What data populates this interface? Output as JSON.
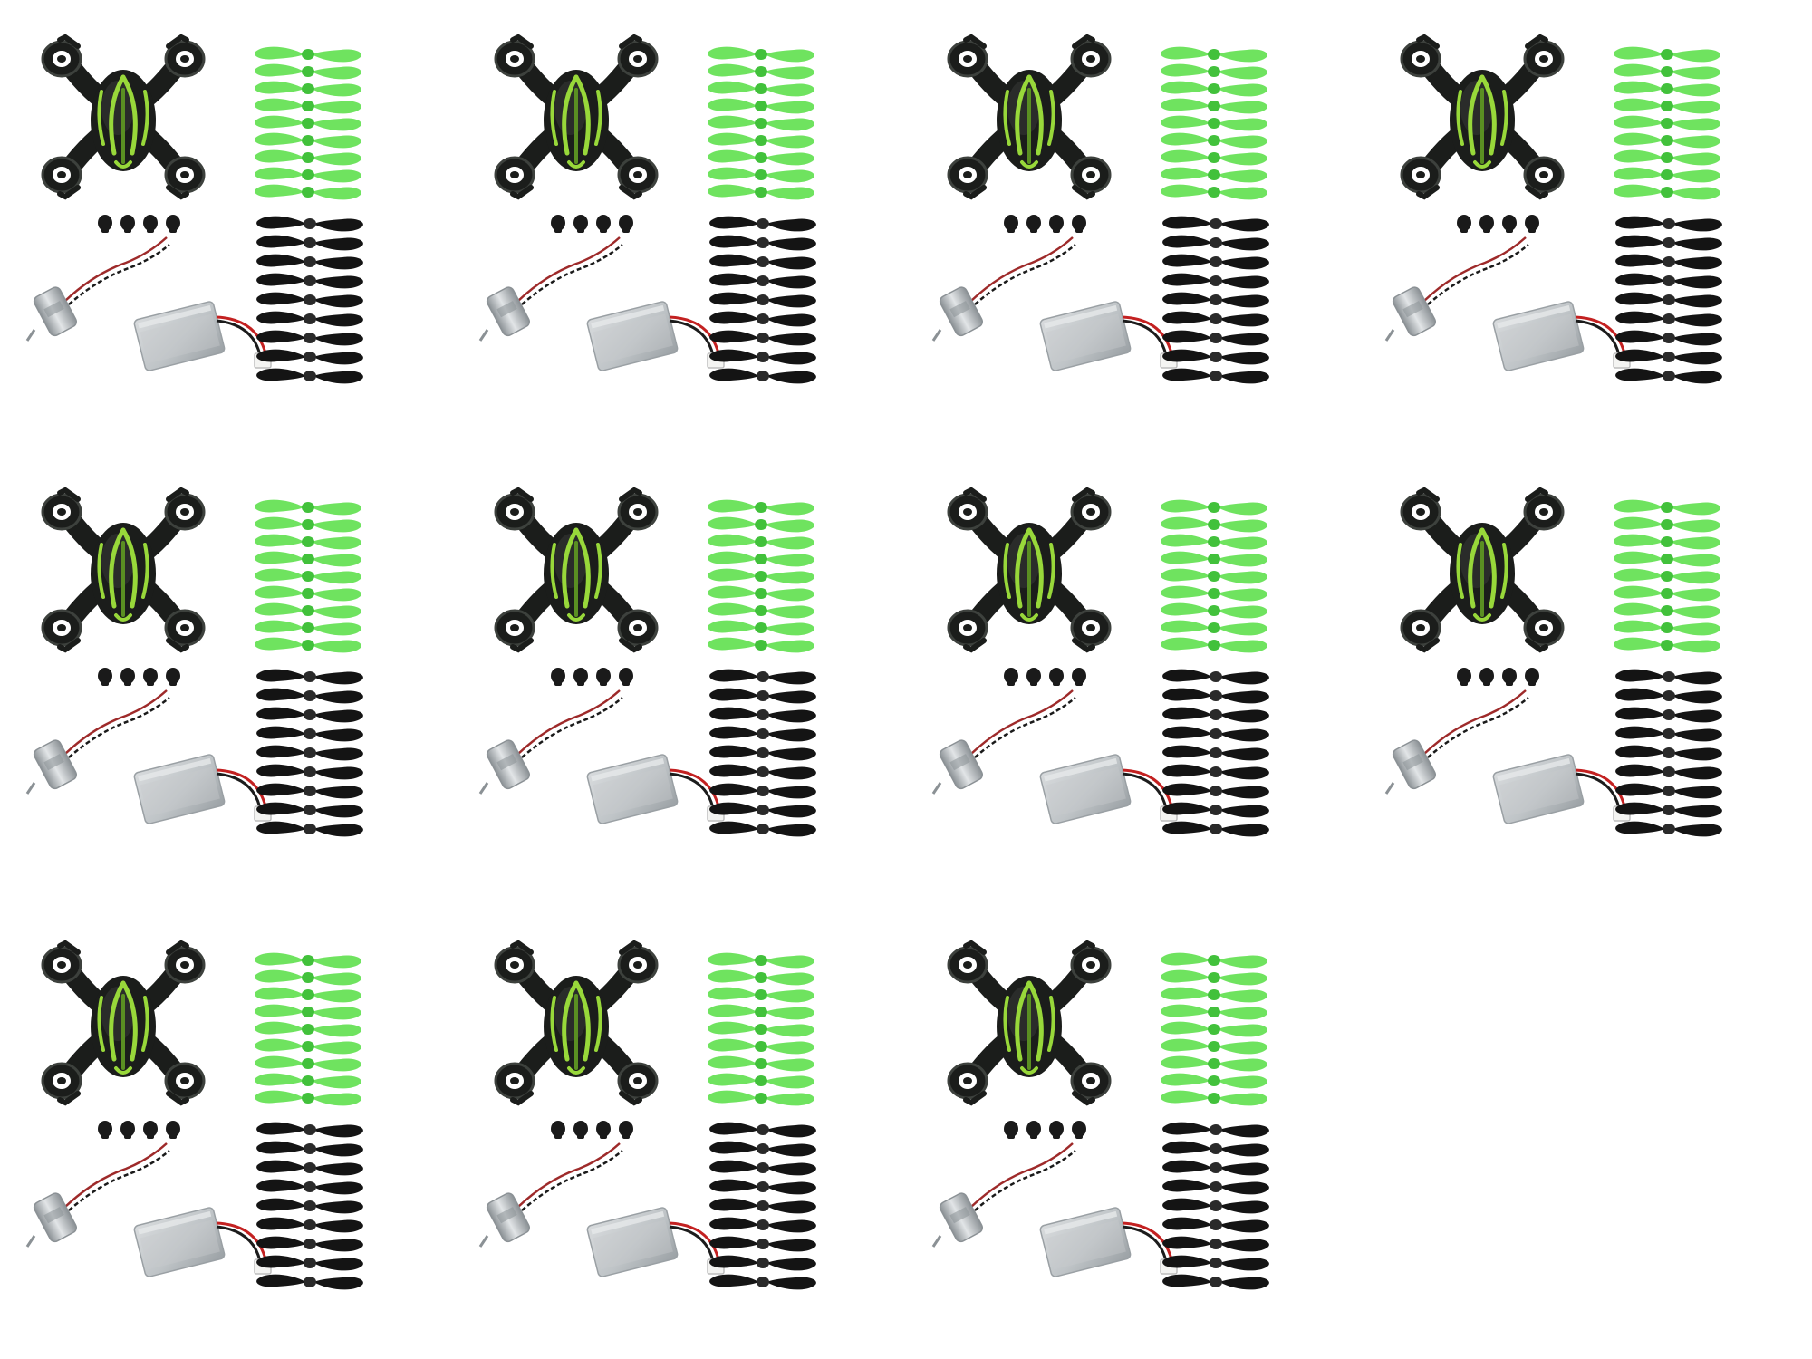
{
  "layout": {
    "columns": 4,
    "rows": 3,
    "kit_count": 11
  },
  "kit": {
    "frame": {
      "name": "quadcopter-body-shell",
      "colors": {
        "shell": "#1b1d1b",
        "shell_highlight": "#3d413d",
        "accent_stripe": "#98d83a",
        "accent_stripe_dark": "#5a8f22"
      }
    },
    "rubber_feet": {
      "count": 4,
      "color": "#1a1a1a"
    },
    "motor": {
      "count": 1,
      "colors": {
        "body": "#bfc3c6",
        "body_dark": "#8b9195",
        "wire_red": "#9e2a2a",
        "wire_black": "#1a1a1a"
      }
    },
    "battery": {
      "count": 1,
      "colors": {
        "body": "#c8cbcd",
        "body_dark": "#9aa0a4",
        "connector": "#f4f4f2",
        "wire_red": "#c32121",
        "wire_black": "#1c1c1c"
      }
    },
    "propellers": {
      "green_count": 9,
      "black_count": 9,
      "colors": {
        "green": "#6fe35f",
        "green_hub": "#42c13b",
        "black": "#141414",
        "black_hub": "#2a2a2a"
      }
    }
  }
}
